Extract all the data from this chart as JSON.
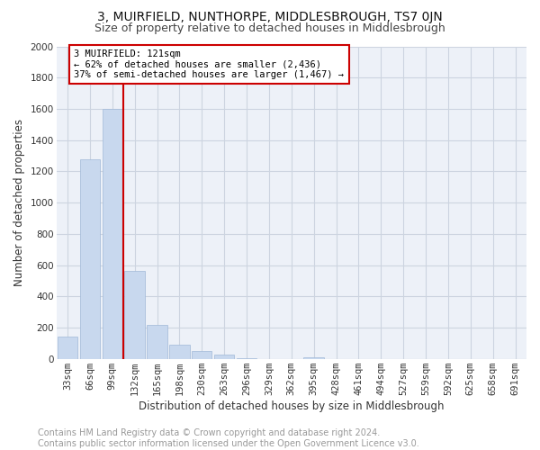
{
  "title": "3, MUIRFIELD, NUNTHORPE, MIDDLESBROUGH, TS7 0JN",
  "subtitle": "Size of property relative to detached houses in Middlesbrough",
  "xlabel": "Distribution of detached houses by size in Middlesbrough",
  "ylabel": "Number of detached properties",
  "footer_line1": "Contains HM Land Registry data © Crown copyright and database right 2024.",
  "footer_line2": "Contains public sector information licensed under the Open Government Licence v3.0.",
  "categories": [
    "33sqm",
    "66sqm",
    "99sqm",
    "132sqm",
    "165sqm",
    "198sqm",
    "230sqm",
    "263sqm",
    "296sqm",
    "329sqm",
    "362sqm",
    "395sqm",
    "428sqm",
    "461sqm",
    "494sqm",
    "527sqm",
    "559sqm",
    "592sqm",
    "625sqm",
    "658sqm",
    "691sqm"
  ],
  "values": [
    140,
    1275,
    1600,
    560,
    215,
    90,
    50,
    25,
    5,
    0,
    0,
    10,
    0,
    0,
    0,
    0,
    0,
    0,
    0,
    0,
    0
  ],
  "bar_color": "#c8d8ee",
  "bar_edge_color": "#a0b8d8",
  "vline_color": "#cc0000",
  "annotation_box_text": "3 MUIRFIELD: 121sqm\n← 62% of detached houses are smaller (2,436)\n37% of semi-detached houses are larger (1,467) →",
  "ylim": [
    0,
    2000
  ],
  "yticks": [
    0,
    200,
    400,
    600,
    800,
    1000,
    1200,
    1400,
    1600,
    1800,
    2000
  ],
  "grid_color": "#ccd4e0",
  "background_color": "#edf1f8",
  "title_fontsize": 10,
  "subtitle_fontsize": 9,
  "axis_label_fontsize": 8.5,
  "tick_fontsize": 7.5,
  "footer_fontsize": 7,
  "annotation_fontsize": 7.5
}
